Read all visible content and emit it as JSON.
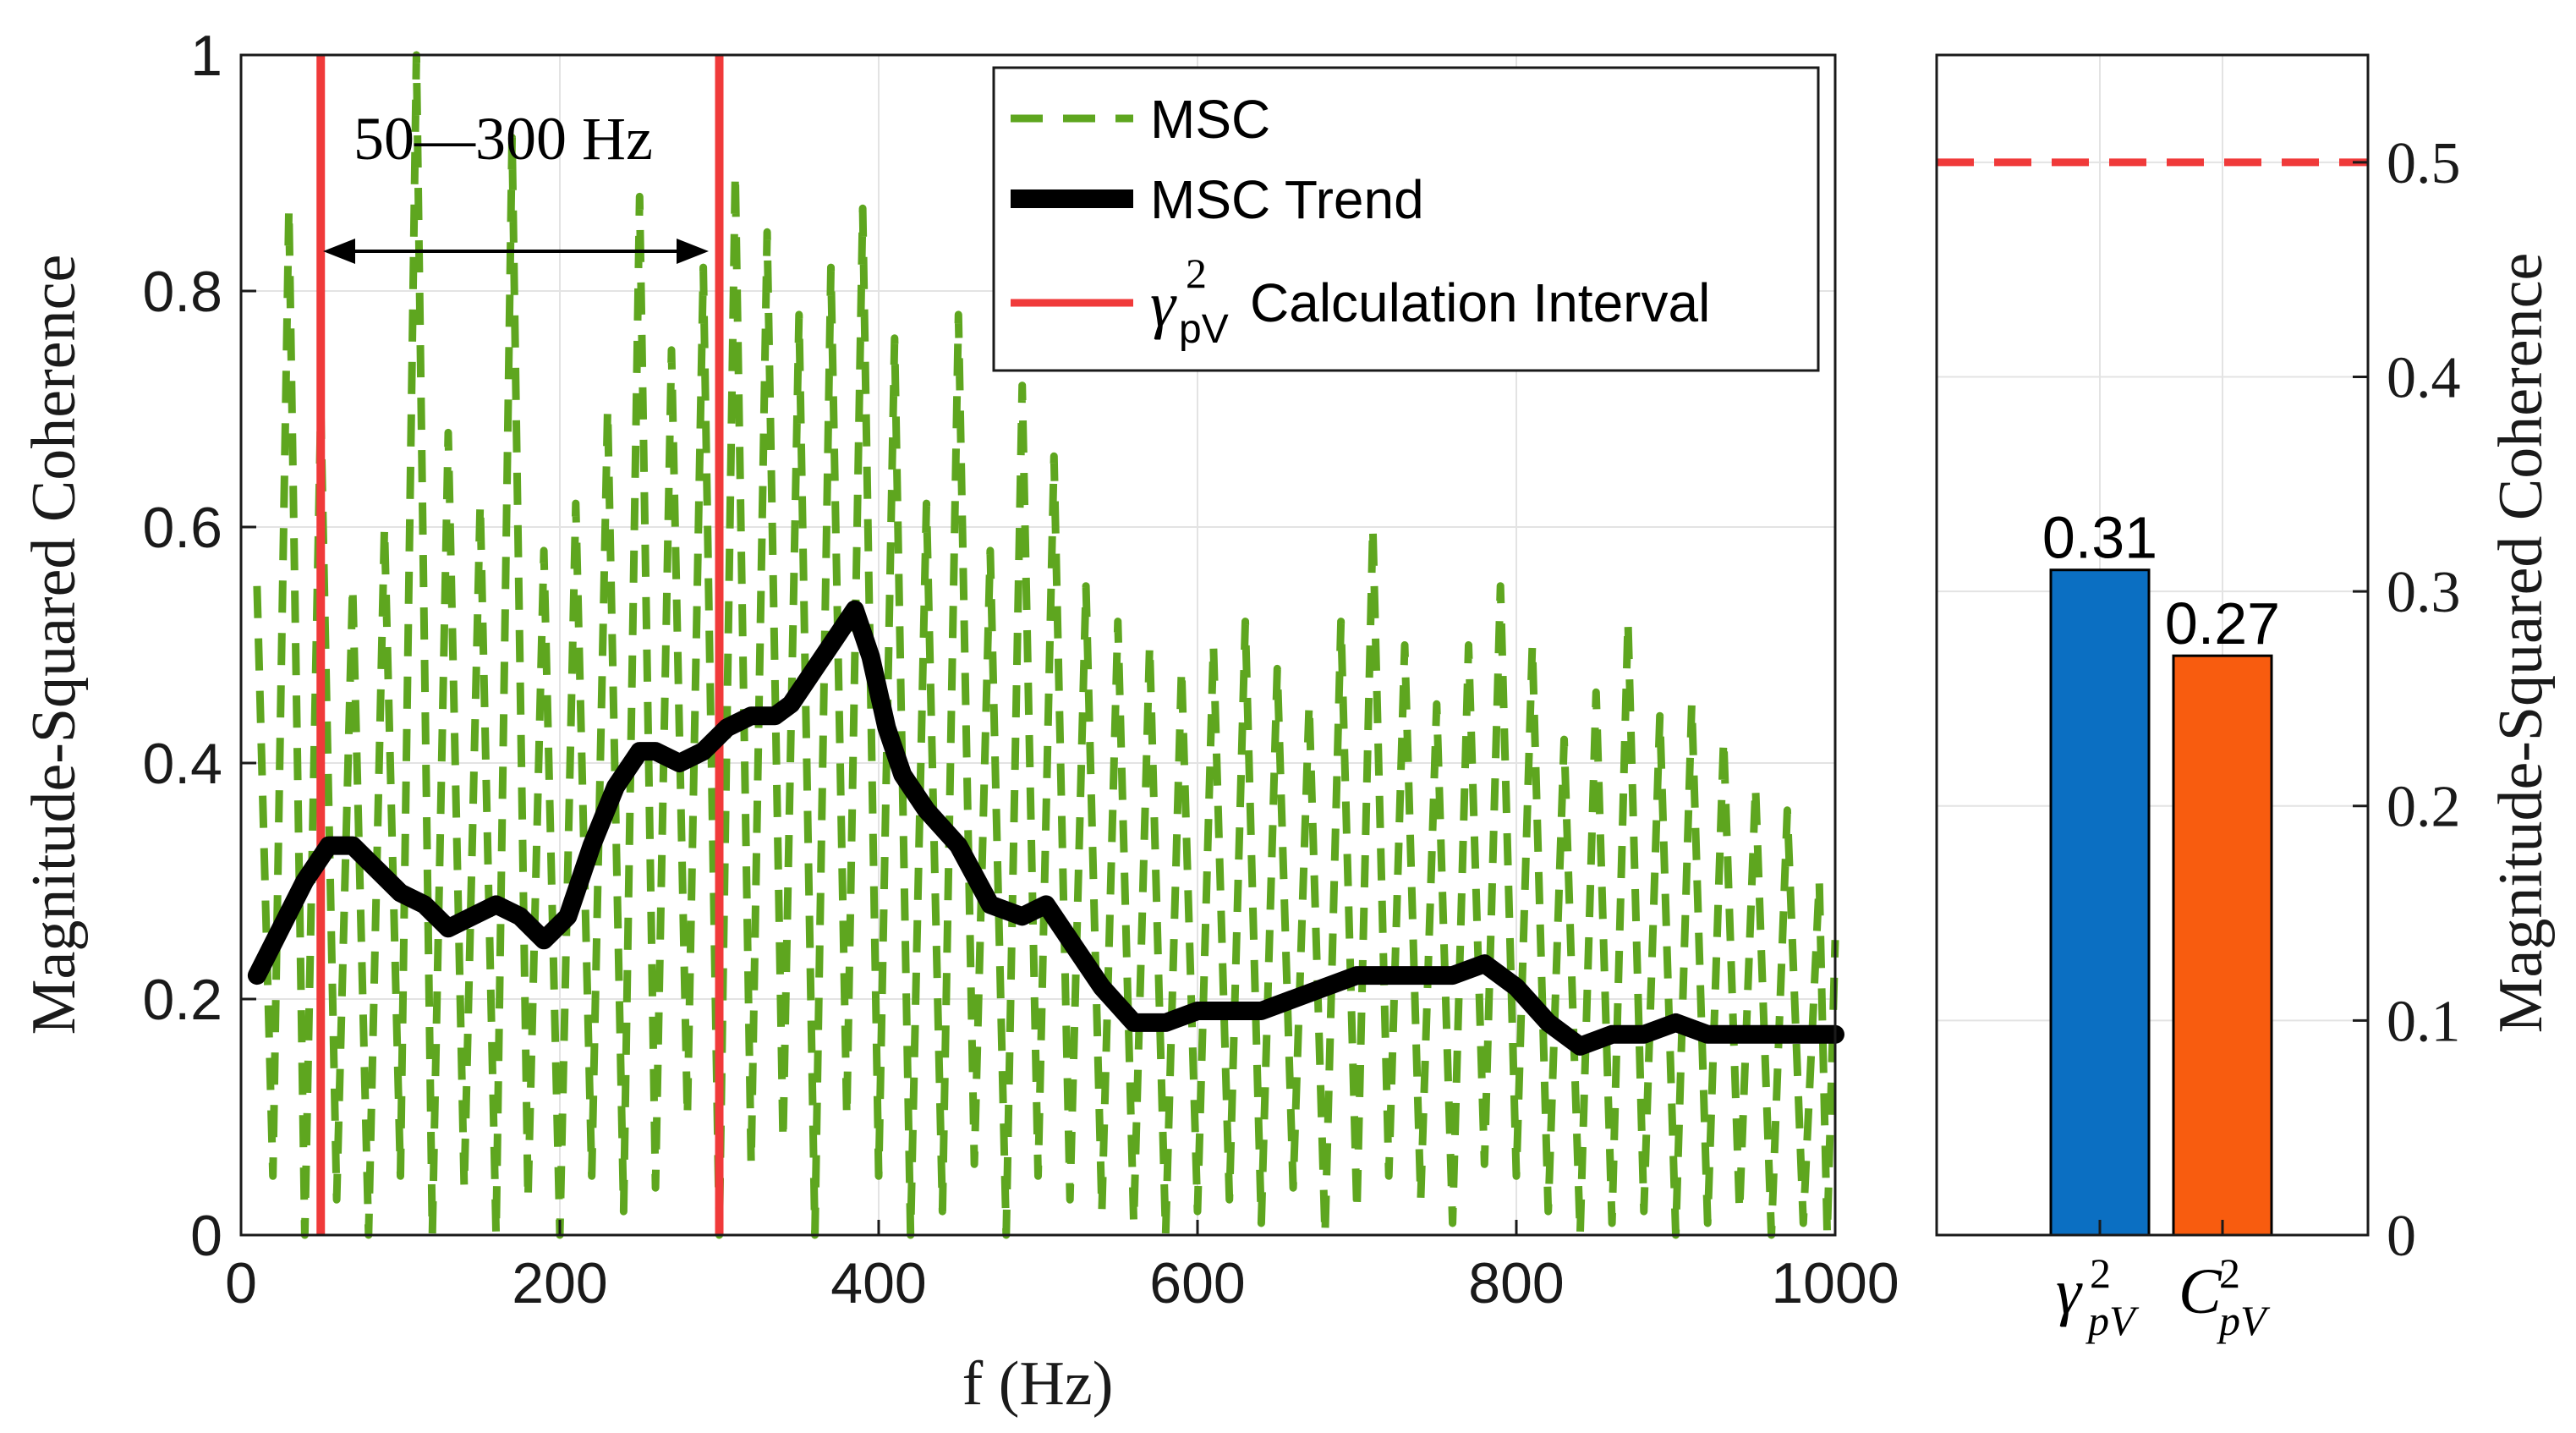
{
  "chart_data": [
    {
      "type": "line",
      "xlabel": "f (Hz)",
      "ylabel": "Magnitude-Squared Coherence",
      "xlim": [
        0,
        1000
      ],
      "ylim": [
        0,
        1
      ],
      "xticks": [
        "0",
        "200",
        "400",
        "600",
        "800",
        "1000"
      ],
      "yticks": [
        "0",
        "0.2",
        "0.4",
        "0.6",
        "0.8",
        "1"
      ],
      "grid": true,
      "legend_position": "top-right",
      "legend": {
        "msc": "MSC",
        "trend": "MSC Trend",
        "interval_symbol": "γ",
        "interval_sup": "2",
        "interval_sub": "pV",
        "interval_text": "Calculation Interval"
      },
      "annotation": "50—300 Hz",
      "interval_hz": [
        50,
        300
      ],
      "series": [
        {
          "name": "MSC Trend",
          "color": "#000000",
          "x": [
            10,
            25,
            40,
            55,
            70,
            85,
            100,
            115,
            130,
            145,
            160,
            175,
            190,
            205,
            220,
            235,
            250,
            260,
            275,
            290,
            305,
            320,
            335,
            345,
            360,
            375,
            385,
            395,
            405,
            415,
            430,
            450,
            470,
            490,
            505,
            520,
            540,
            560,
            580,
            600,
            620,
            640,
            660,
            680,
            700,
            720,
            740,
            760,
            780,
            800,
            820,
            840,
            860,
            880,
            900,
            920,
            940,
            960,
            980,
            1000
          ],
          "values": [
            0.22,
            0.26,
            0.3,
            0.33,
            0.33,
            0.31,
            0.29,
            0.28,
            0.26,
            0.27,
            0.28,
            0.27,
            0.25,
            0.27,
            0.33,
            0.38,
            0.41,
            0.41,
            0.4,
            0.41,
            0.43,
            0.44,
            0.44,
            0.45,
            0.48,
            0.51,
            0.53,
            0.49,
            0.43,
            0.39,
            0.36,
            0.33,
            0.28,
            0.27,
            0.28,
            0.25,
            0.21,
            0.18,
            0.18,
            0.19,
            0.19,
            0.19,
            0.2,
            0.21,
            0.22,
            0.22,
            0.22,
            0.22,
            0.23,
            0.21,
            0.18,
            0.16,
            0.17,
            0.17,
            0.18,
            0.17,
            0.17,
            0.17,
            0.17,
            0.17
          ]
        },
        {
          "name": "MSC",
          "color": "#5ea61f",
          "x": [
            10,
            30,
            50,
            70,
            90,
            110,
            130,
            150,
            170,
            190,
            210,
            230,
            250,
            270,
            290,
            310,
            330,
            350,
            370,
            390,
            410,
            430,
            450,
            470,
            490,
            510,
            530,
            550,
            570,
            590,
            610,
            630,
            650,
            670,
            690,
            710,
            730,
            750,
            770,
            790,
            810,
            830,
            850,
            870,
            890,
            910,
            930,
            950,
            970,
            990,
            1000
          ],
          "min": [
            0.05,
            0.0,
            0.03,
            0.0,
            0.05,
            0.0,
            0.04,
            0.0,
            0.03,
            0.0,
            0.05,
            0.02,
            0.04,
            0.1,
            0.0,
            0.06,
            0.08,
            0.0,
            0.1,
            0.05,
            0.0,
            0.02,
            0.06,
            0.0,
            0.05,
            0.03,
            0.02,
            0.01,
            0.0,
            0.02,
            0.03,
            0.01,
            0.04,
            0.0,
            0.02,
            0.05,
            0.03,
            0.01,
            0.06,
            0.05,
            0.02,
            0.0,
            0.01,
            0.02,
            0.0,
            0.01,
            0.02,
            0.0,
            0.01,
            0.0,
            0.03
          ],
          "max": [
            0.55,
            0.87,
            0.7,
            0.55,
            0.6,
            1.0,
            0.68,
            0.62,
            0.93,
            0.58,
            0.62,
            0.7,
            0.88,
            0.75,
            0.82,
            0.9,
            0.85,
            0.78,
            0.82,
            0.87,
            0.76,
            0.62,
            0.78,
            0.58,
            0.72,
            0.66,
            0.55,
            0.52,
            0.5,
            0.48,
            0.5,
            0.52,
            0.48,
            0.45,
            0.52,
            0.6,
            0.5,
            0.45,
            0.5,
            0.55,
            0.5,
            0.42,
            0.46,
            0.52,
            0.44,
            0.45,
            0.42,
            0.38,
            0.36,
            0.3,
            0.25
          ]
        }
      ]
    },
    {
      "type": "bar",
      "ylabel": "Magnitude-Squared Coherence",
      "ylim": [
        0,
        0.55
      ],
      "yticks": [
        "0",
        "0.1",
        "0.2",
        "0.3",
        "0.4",
        "0.5"
      ],
      "threshold": 0.5,
      "threshold_color": "#f03a3a",
      "categories": [
        {
          "symbol": "γ",
          "sup": "2",
          "sub": "pV"
        },
        {
          "symbol": "C",
          "sup": "2",
          "sub": "pV"
        }
      ],
      "values": [
        0.31,
        0.27
      ],
      "value_labels": [
        "0.31",
        "0.27"
      ],
      "colors": [
        "#0b6fc2",
        "#f85c0f"
      ]
    }
  ]
}
